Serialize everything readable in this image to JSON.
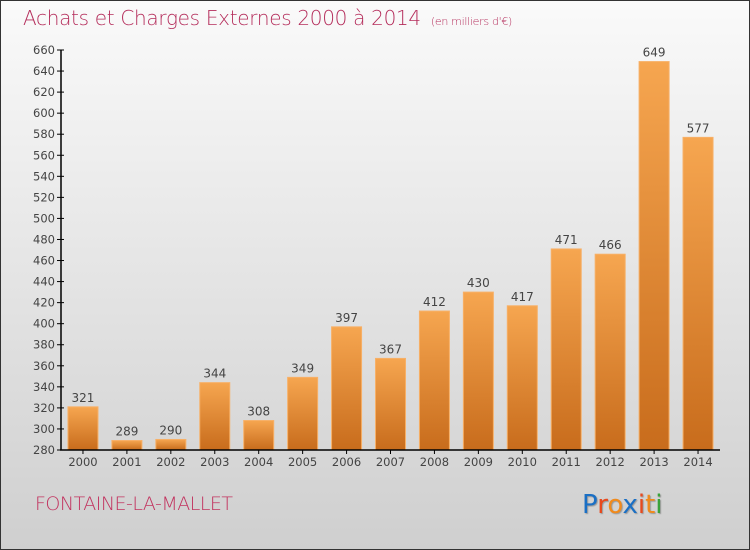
{
  "header": {
    "title": "Achats et Charges Externes 2000 à 2014",
    "unit": "(en milliers d'€)"
  },
  "footer": {
    "town": "FONTAINE-LA-MALLET",
    "logo": {
      "letters": [
        "P",
        "r",
        "o",
        "x",
        "i",
        "t",
        "i"
      ],
      "colors": [
        "#1a6fc4",
        "#e8491d",
        "#f08a1c",
        "#1a6fc4",
        "#e8491d",
        "#f08a1c",
        "#3aa23a"
      ]
    }
  },
  "colors": {
    "bar_top": "#f6a650",
    "bar_bottom": "#c86c1c",
    "title": "#b52e5c",
    "text": "#444444"
  },
  "chart_data": {
    "type": "bar",
    "title": "Achats et Charges Externes 2000 à 2014",
    "subtitle": "(en milliers d'€)",
    "xlabel": "",
    "ylabel": "",
    "categories": [
      "2000",
      "2001",
      "2002",
      "2003",
      "2004",
      "2005",
      "2006",
      "2007",
      "2008",
      "2009",
      "2010",
      "2011",
      "2012",
      "2013",
      "2014"
    ],
    "values": [
      321,
      289,
      290,
      344,
      308,
      349,
      397,
      367,
      412,
      430,
      417,
      471,
      466,
      649,
      577
    ],
    "ylim": [
      280,
      660
    ],
    "yticks": [
      280,
      300,
      320,
      340,
      360,
      380,
      400,
      420,
      440,
      460,
      480,
      500,
      520,
      540,
      560,
      580,
      600,
      620,
      640,
      660
    ],
    "grid": false,
    "legend": "none"
  }
}
